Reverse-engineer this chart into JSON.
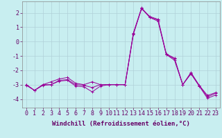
{
  "xlabel": "Windchill (Refroidissement éolien,°C)",
  "background_color": "#c8eef0",
  "line_color": "#990099",
  "grid_color": "#b0d0d8",
  "xlim": [
    -0.5,
    23.5
  ],
  "ylim": [
    -4.6,
    2.8
  ],
  "xticks": [
    0,
    1,
    2,
    3,
    4,
    5,
    6,
    7,
    8,
    9,
    10,
    11,
    12,
    13,
    14,
    15,
    16,
    17,
    18,
    19,
    20,
    21,
    22,
    23
  ],
  "yticks": [
    -4,
    -3,
    -2,
    -1,
    0,
    1,
    2
  ],
  "hours": [
    0,
    1,
    2,
    3,
    4,
    5,
    6,
    7,
    8,
    9,
    10,
    11,
    12,
    13,
    14,
    15,
    16,
    17,
    18,
    19,
    20,
    21,
    22,
    23
  ],
  "line1": [
    -3.0,
    -3.4,
    -3.0,
    -2.8,
    -2.6,
    -2.5,
    -2.9,
    -3.0,
    -2.8,
    -3.0,
    -3.0,
    -3.0,
    -3.0,
    0.5,
    2.3,
    1.75,
    1.55,
    -0.85,
    -1.15,
    -3.0,
    -2.15,
    -3.05,
    -3.75,
    -3.55
  ],
  "line2": [
    -3.0,
    -3.4,
    -3.0,
    -3.0,
    -2.7,
    -2.65,
    -3.0,
    -3.05,
    -3.2,
    -3.0,
    -3.0,
    -3.0,
    -3.0,
    0.6,
    2.35,
    1.7,
    1.5,
    -0.9,
    -1.2,
    -3.0,
    -2.2,
    -3.05,
    -3.85,
    -3.6
  ],
  "line3": [
    -3.05,
    -3.4,
    -3.05,
    -3.0,
    -2.75,
    -2.7,
    -3.1,
    -3.15,
    -3.5,
    -3.1,
    -3.0,
    -3.0,
    -3.0,
    0.55,
    2.3,
    1.68,
    1.42,
    -0.9,
    -1.3,
    -3.0,
    -2.25,
    -3.1,
    -3.95,
    -3.72
  ],
  "xlabel_fontsize": 6.5,
  "tick_fontsize": 6.0
}
